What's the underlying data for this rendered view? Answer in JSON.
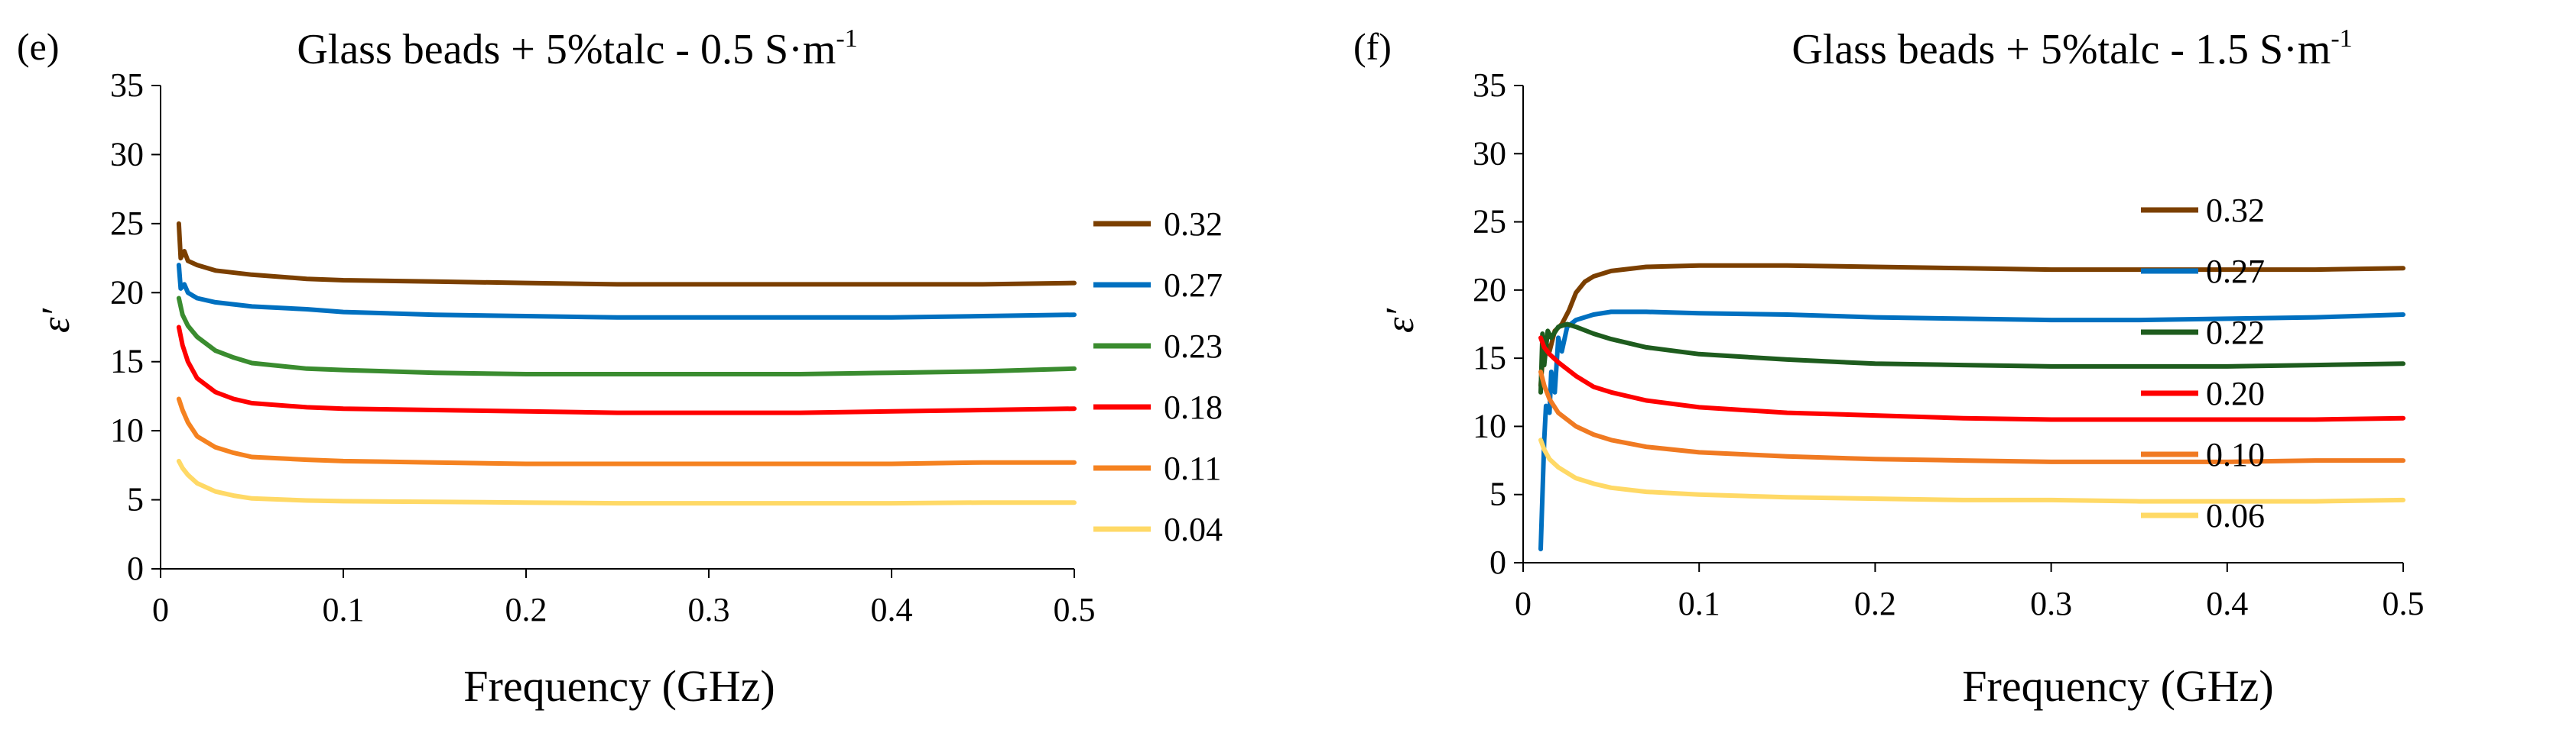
{
  "chart_data": [
    {
      "type": "line",
      "panel_label": "(e)",
      "title": "Glass beads + 5%talc - 0.5 S·m",
      "title_sup": "-1",
      "xlabel": "Frequency (GHz)",
      "ylabel": "ε′",
      "xlim": [
        0,
        0.5
      ],
      "ylim": [
        0,
        35
      ],
      "x_ticks": [
        "0",
        "0.1",
        "0.2",
        "0.3",
        "0.4",
        "0.5"
      ],
      "y_ticks": [
        "0",
        "5",
        "10",
        "15",
        "20",
        "25",
        "30",
        "35"
      ],
      "grid": false,
      "legend_position": "right",
      "series": [
        {
          "name": "0.32",
          "color": "#7B3F00",
          "points": [
            [
              0.01,
              25.0
            ],
            [
              0.011,
              22.5
            ],
            [
              0.013,
              23.0
            ],
            [
              0.015,
              22.3
            ],
            [
              0.02,
              22.0
            ],
            [
              0.03,
              21.6
            ],
            [
              0.05,
              21.3
            ],
            [
              0.08,
              21.0
            ],
            [
              0.1,
              20.9
            ],
            [
              0.15,
              20.8
            ],
            [
              0.2,
              20.7
            ],
            [
              0.25,
              20.6
            ],
            [
              0.3,
              20.6
            ],
            [
              0.35,
              20.6
            ],
            [
              0.4,
              20.6
            ],
            [
              0.45,
              20.6
            ],
            [
              0.5,
              20.7
            ]
          ]
        },
        {
          "name": "0.27",
          "color": "#0070C0",
          "points": [
            [
              0.01,
              22.0
            ],
            [
              0.011,
              20.3
            ],
            [
              0.013,
              20.6
            ],
            [
              0.015,
              20.0
            ],
            [
              0.02,
              19.6
            ],
            [
              0.03,
              19.3
            ],
            [
              0.05,
              19.0
            ],
            [
              0.08,
              18.8
            ],
            [
              0.1,
              18.6
            ],
            [
              0.15,
              18.4
            ],
            [
              0.2,
              18.3
            ],
            [
              0.25,
              18.2
            ],
            [
              0.3,
              18.2
            ],
            [
              0.35,
              18.2
            ],
            [
              0.4,
              18.2
            ],
            [
              0.45,
              18.3
            ],
            [
              0.5,
              18.4
            ]
          ]
        },
        {
          "name": "0.23",
          "color": "#3A8C2F",
          "points": [
            [
              0.01,
              19.6
            ],
            [
              0.012,
              18.4
            ],
            [
              0.015,
              17.6
            ],
            [
              0.02,
              16.8
            ],
            [
              0.03,
              15.8
            ],
            [
              0.04,
              15.3
            ],
            [
              0.05,
              14.9
            ],
            [
              0.08,
              14.5
            ],
            [
              0.1,
              14.4
            ],
            [
              0.15,
              14.2
            ],
            [
              0.2,
              14.1
            ],
            [
              0.25,
              14.1
            ],
            [
              0.3,
              14.1
            ],
            [
              0.35,
              14.1
            ],
            [
              0.4,
              14.2
            ],
            [
              0.45,
              14.3
            ],
            [
              0.5,
              14.5
            ]
          ]
        },
        {
          "name": "0.18",
          "color": "#FF0000",
          "points": [
            [
              0.01,
              17.5
            ],
            [
              0.012,
              16.2
            ],
            [
              0.015,
              15.0
            ],
            [
              0.02,
              13.8
            ],
            [
              0.03,
              12.8
            ],
            [
              0.04,
              12.3
            ],
            [
              0.05,
              12.0
            ],
            [
              0.08,
              11.7
            ],
            [
              0.1,
              11.6
            ],
            [
              0.15,
              11.5
            ],
            [
              0.2,
              11.4
            ],
            [
              0.25,
              11.3
            ],
            [
              0.3,
              11.3
            ],
            [
              0.35,
              11.3
            ],
            [
              0.4,
              11.4
            ],
            [
              0.45,
              11.5
            ],
            [
              0.5,
              11.6
            ]
          ]
        },
        {
          "name": "0.11",
          "color": "#F58220",
          "points": [
            [
              0.01,
              12.3
            ],
            [
              0.012,
              11.5
            ],
            [
              0.015,
              10.6
            ],
            [
              0.02,
              9.6
            ],
            [
              0.03,
              8.8
            ],
            [
              0.04,
              8.4
            ],
            [
              0.05,
              8.1
            ],
            [
              0.08,
              7.9
            ],
            [
              0.1,
              7.8
            ],
            [
              0.15,
              7.7
            ],
            [
              0.2,
              7.6
            ],
            [
              0.25,
              7.6
            ],
            [
              0.3,
              7.6
            ],
            [
              0.35,
              7.6
            ],
            [
              0.4,
              7.6
            ],
            [
              0.45,
              7.7
            ],
            [
              0.5,
              7.7
            ]
          ]
        },
        {
          "name": "0.04",
          "color": "#FFD966",
          "points": [
            [
              0.01,
              7.8
            ],
            [
              0.012,
              7.3
            ],
            [
              0.015,
              6.8
            ],
            [
              0.02,
              6.2
            ],
            [
              0.03,
              5.6
            ],
            [
              0.04,
              5.3
            ],
            [
              0.05,
              5.1
            ],
            [
              0.08,
              4.95
            ],
            [
              0.1,
              4.9
            ],
            [
              0.15,
              4.85
            ],
            [
              0.2,
              4.8
            ],
            [
              0.25,
              4.75
            ],
            [
              0.3,
              4.75
            ],
            [
              0.35,
              4.75
            ],
            [
              0.4,
              4.75
            ],
            [
              0.45,
              4.8
            ],
            [
              0.5,
              4.8
            ]
          ]
        }
      ]
    },
    {
      "type": "line",
      "panel_label": "(f)",
      "title": "Glass beads + 5%talc - 1.5 S·m",
      "title_sup": "-1",
      "xlabel": "Frequency (GHz)",
      "ylabel": "ε′",
      "xlim": [
        0,
        0.5
      ],
      "ylim": [
        0,
        35
      ],
      "x_ticks": [
        "0",
        "0.1",
        "0.2",
        "0.3",
        "0.4",
        "0.5"
      ],
      "y_ticks": [
        "0",
        "5",
        "10",
        "15",
        "20",
        "25",
        "30",
        "35"
      ],
      "grid": false,
      "legend_position": "right",
      "series": [
        {
          "name": "0.32",
          "color": "#7B3F00",
          "points": [
            [
              0.01,
              13.0
            ],
            [
              0.012,
              16.5
            ],
            [
              0.015,
              15.5
            ],
            [
              0.018,
              17.0
            ],
            [
              0.022,
              17.5
            ],
            [
              0.026,
              18.5
            ],
            [
              0.03,
              19.8
            ],
            [
              0.035,
              20.6
            ],
            [
              0.04,
              21.0
            ],
            [
              0.05,
              21.4
            ],
            [
              0.07,
              21.7
            ],
            [
              0.1,
              21.8
            ],
            [
              0.15,
              21.8
            ],
            [
              0.2,
              21.7
            ],
            [
              0.25,
              21.6
            ],
            [
              0.3,
              21.5
            ],
            [
              0.35,
              21.5
            ],
            [
              0.4,
              21.5
            ],
            [
              0.45,
              21.5
            ],
            [
              0.5,
              21.6
            ]
          ]
        },
        {
          "name": "0.27",
          "color": "#0070C0",
          "points": [
            [
              0.01,
              1.0
            ],
            [
              0.011,
              5.0
            ],
            [
              0.012,
              9.0
            ],
            [
              0.013,
              11.5
            ],
            [
              0.015,
              11.0
            ],
            [
              0.016,
              14.0
            ],
            [
              0.018,
              12.5
            ],
            [
              0.02,
              16.5
            ],
            [
              0.022,
              15.5
            ],
            [
              0.025,
              17.3
            ],
            [
              0.03,
              17.8
            ],
            [
              0.04,
              18.2
            ],
            [
              0.05,
              18.4
            ],
            [
              0.07,
              18.4
            ],
            [
              0.1,
              18.3
            ],
            [
              0.15,
              18.2
            ],
            [
              0.2,
              18.0
            ],
            [
              0.25,
              17.9
            ],
            [
              0.3,
              17.8
            ],
            [
              0.35,
              17.8
            ],
            [
              0.4,
              17.9
            ],
            [
              0.45,
              18.0
            ],
            [
              0.5,
              18.2
            ]
          ]
        },
        {
          "name": "0.22",
          "color": "#1E5C1E",
          "points": [
            [
              0.01,
              12.5
            ],
            [
              0.011,
              16.8
            ],
            [
              0.012,
              14.5
            ],
            [
              0.014,
              17.0
            ],
            [
              0.016,
              16.5
            ],
            [
              0.02,
              17.3
            ],
            [
              0.025,
              17.5
            ],
            [
              0.03,
              17.3
            ],
            [
              0.04,
              16.8
            ],
            [
              0.05,
              16.4
            ],
            [
              0.07,
              15.8
            ],
            [
              0.1,
              15.3
            ],
            [
              0.15,
              14.9
            ],
            [
              0.2,
              14.6
            ],
            [
              0.25,
              14.5
            ],
            [
              0.3,
              14.4
            ],
            [
              0.35,
              14.4
            ],
            [
              0.4,
              14.4
            ],
            [
              0.45,
              14.5
            ],
            [
              0.5,
              14.6
            ]
          ]
        },
        {
          "name": "0.20",
          "color": "#FF0000",
          "points": [
            [
              0.01,
              16.5
            ],
            [
              0.012,
              15.8
            ],
            [
              0.015,
              15.3
            ],
            [
              0.02,
              14.7
            ],
            [
              0.03,
              13.7
            ],
            [
              0.04,
              12.9
            ],
            [
              0.05,
              12.5
            ],
            [
              0.07,
              11.9
            ],
            [
              0.1,
              11.4
            ],
            [
              0.15,
              11.0
            ],
            [
              0.2,
              10.8
            ],
            [
              0.25,
              10.6
            ],
            [
              0.3,
              10.5
            ],
            [
              0.35,
              10.5
            ],
            [
              0.4,
              10.5
            ],
            [
              0.45,
              10.5
            ],
            [
              0.5,
              10.6
            ]
          ]
        },
        {
          "name": "0.10",
          "color": "#F07A22",
          "points": [
            [
              0.01,
              14.0
            ],
            [
              0.012,
              13.0
            ],
            [
              0.015,
              12.0
            ],
            [
              0.02,
              11.0
            ],
            [
              0.03,
              10.0
            ],
            [
              0.04,
              9.4
            ],
            [
              0.05,
              9.0
            ],
            [
              0.07,
              8.5
            ],
            [
              0.1,
              8.1
            ],
            [
              0.15,
              7.8
            ],
            [
              0.2,
              7.6
            ],
            [
              0.25,
              7.5
            ],
            [
              0.3,
              7.4
            ],
            [
              0.35,
              7.4
            ],
            [
              0.4,
              7.4
            ],
            [
              0.45,
              7.5
            ],
            [
              0.5,
              7.5
            ]
          ]
        },
        {
          "name": "0.06",
          "color": "#FFD966",
          "points": [
            [
              0.01,
              9.0
            ],
            [
              0.012,
              8.3
            ],
            [
              0.015,
              7.6
            ],
            [
              0.02,
              7.0
            ],
            [
              0.03,
              6.2
            ],
            [
              0.04,
              5.8
            ],
            [
              0.05,
              5.5
            ],
            [
              0.07,
              5.2
            ],
            [
              0.1,
              5.0
            ],
            [
              0.15,
              4.8
            ],
            [
              0.2,
              4.7
            ],
            [
              0.25,
              4.6
            ],
            [
              0.3,
              4.6
            ],
            [
              0.35,
              4.5
            ],
            [
              0.4,
              4.5
            ],
            [
              0.45,
              4.5
            ],
            [
              0.5,
              4.6
            ]
          ]
        }
      ]
    }
  ]
}
